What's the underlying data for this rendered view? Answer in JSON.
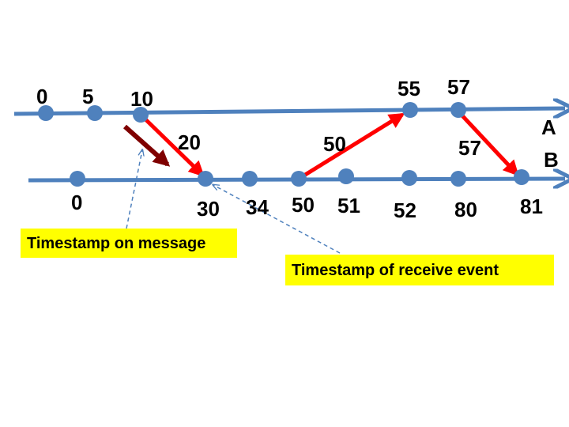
{
  "process_labels": {
    "a": "A",
    "b": "B"
  },
  "timeline_a": {
    "events": [
      "0",
      "5",
      "10",
      "55",
      "57"
    ]
  },
  "timeline_b": {
    "events": [
      "0",
      "30",
      "34",
      "50",
      "51",
      "52",
      "80",
      "81"
    ]
  },
  "messages": [
    {
      "from": "A",
      "to": "B",
      "timestamp": "20"
    },
    {
      "from": "B",
      "to": "A",
      "timestamp": "50"
    },
    {
      "from": "A",
      "to": "B",
      "timestamp": "57"
    }
  ],
  "callouts": {
    "message_timestamp": "Timestamp on message",
    "receive_timestamp": "Timestamp of receive event"
  },
  "colors": {
    "timeline": "#4f81bd",
    "event_dot": "#4f81bd",
    "message_arrow": "#ff0000",
    "pointer_arrow": "#7f0000",
    "callout_bg": "#ffff00"
  }
}
